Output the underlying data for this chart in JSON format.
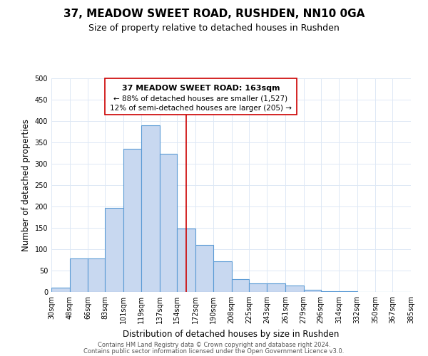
{
  "title": "37, MEADOW SWEET ROAD, RUSHDEN, NN10 0GA",
  "subtitle": "Size of property relative to detached houses in Rushden",
  "xlabel": "Distribution of detached houses by size in Rushden",
  "ylabel": "Number of detached properties",
  "bin_edges": [
    30,
    48,
    66,
    83,
    101,
    119,
    137,
    154,
    172,
    190,
    208,
    225,
    243,
    261,
    279,
    296,
    314,
    332,
    350,
    367,
    385
  ],
  "bar_heights": [
    10,
    78,
    78,
    197,
    335,
    390,
    323,
    148,
    110,
    72,
    30,
    20,
    20,
    15,
    5,
    2,
    1,
    0,
    0,
    0
  ],
  "bar_color": "#c8d8f0",
  "bar_edge_color": "#5b9bd5",
  "vline_x": 163,
  "vline_color": "#cc0000",
  "ylim": [
    0,
    500
  ],
  "yticks": [
    0,
    50,
    100,
    150,
    200,
    250,
    300,
    350,
    400,
    450,
    500
  ],
  "annotation_title": "37 MEADOW SWEET ROAD: 163sqm",
  "annotation_line1": "← 88% of detached houses are smaller (1,527)",
  "annotation_line2": "12% of semi-detached houses are larger (205) →",
  "annotation_box_edge": "#cc0000",
  "footer1": "Contains HM Land Registry data © Crown copyright and database right 2024.",
  "footer2": "Contains public sector information licensed under the Open Government Licence v3.0.",
  "title_fontsize": 11,
  "subtitle_fontsize": 9,
  "tick_label_fontsize": 7,
  "axis_label_fontsize": 8.5,
  "annotation_title_fontsize": 8,
  "annotation_body_fontsize": 7.5,
  "footer_fontsize": 6,
  "background_color": "#ffffff",
  "grid_color": "#dde8f5"
}
